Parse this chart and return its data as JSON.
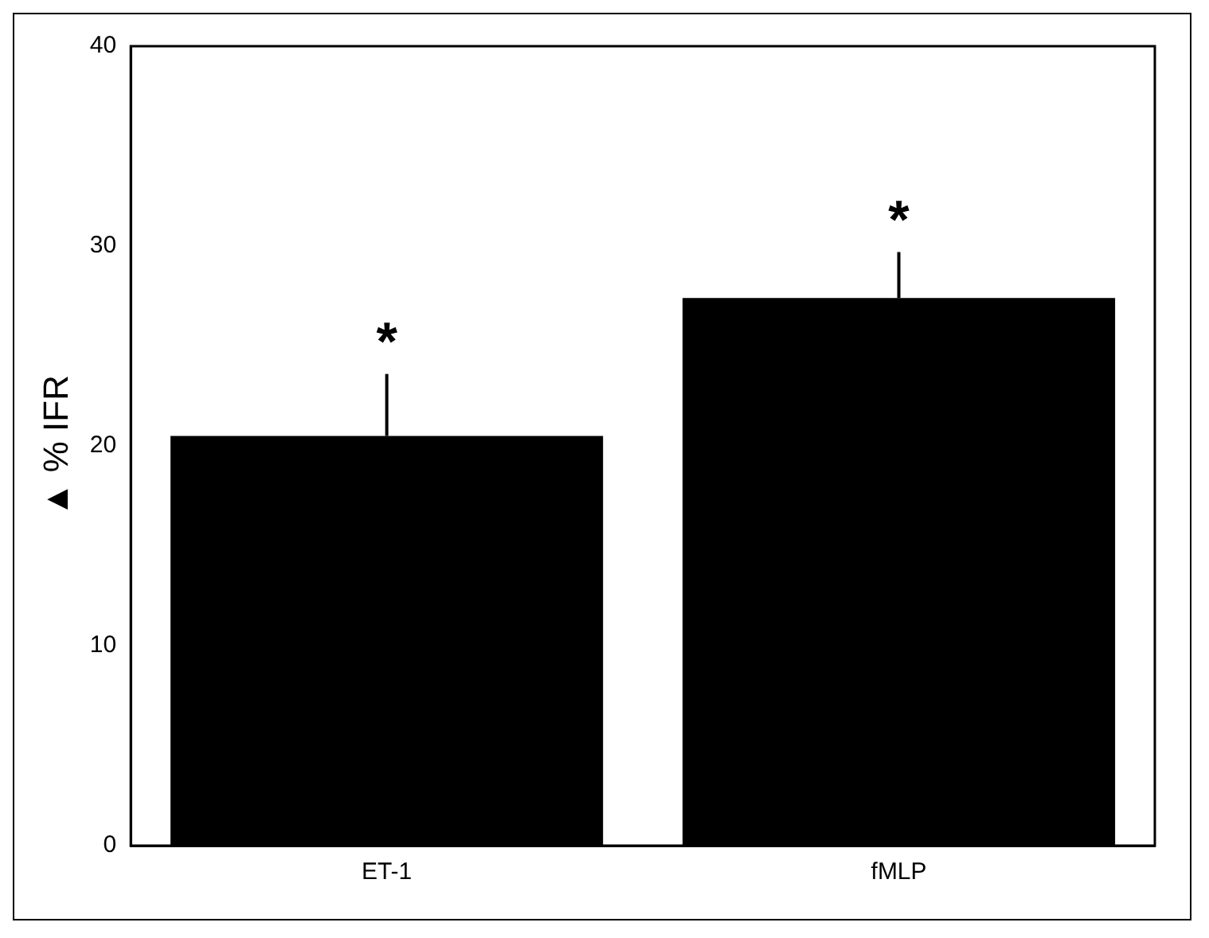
{
  "chart_data": {
    "type": "bar",
    "ylabel": "▲ % IFR",
    "categories": [
      "ET-1",
      "fMLP"
    ],
    "values": [
      20.5,
      27.4
    ],
    "color": "#000000",
    "errors": [
      [
        20.5,
        23.6
      ],
      [
        27.4,
        29.7
      ]
    ],
    "ylim": [
      0,
      40
    ],
    "yticks": [
      0,
      10,
      20,
      30,
      40
    ],
    "grid": false,
    "legend": false,
    "annotations": [
      "*",
      "*"
    ]
  }
}
